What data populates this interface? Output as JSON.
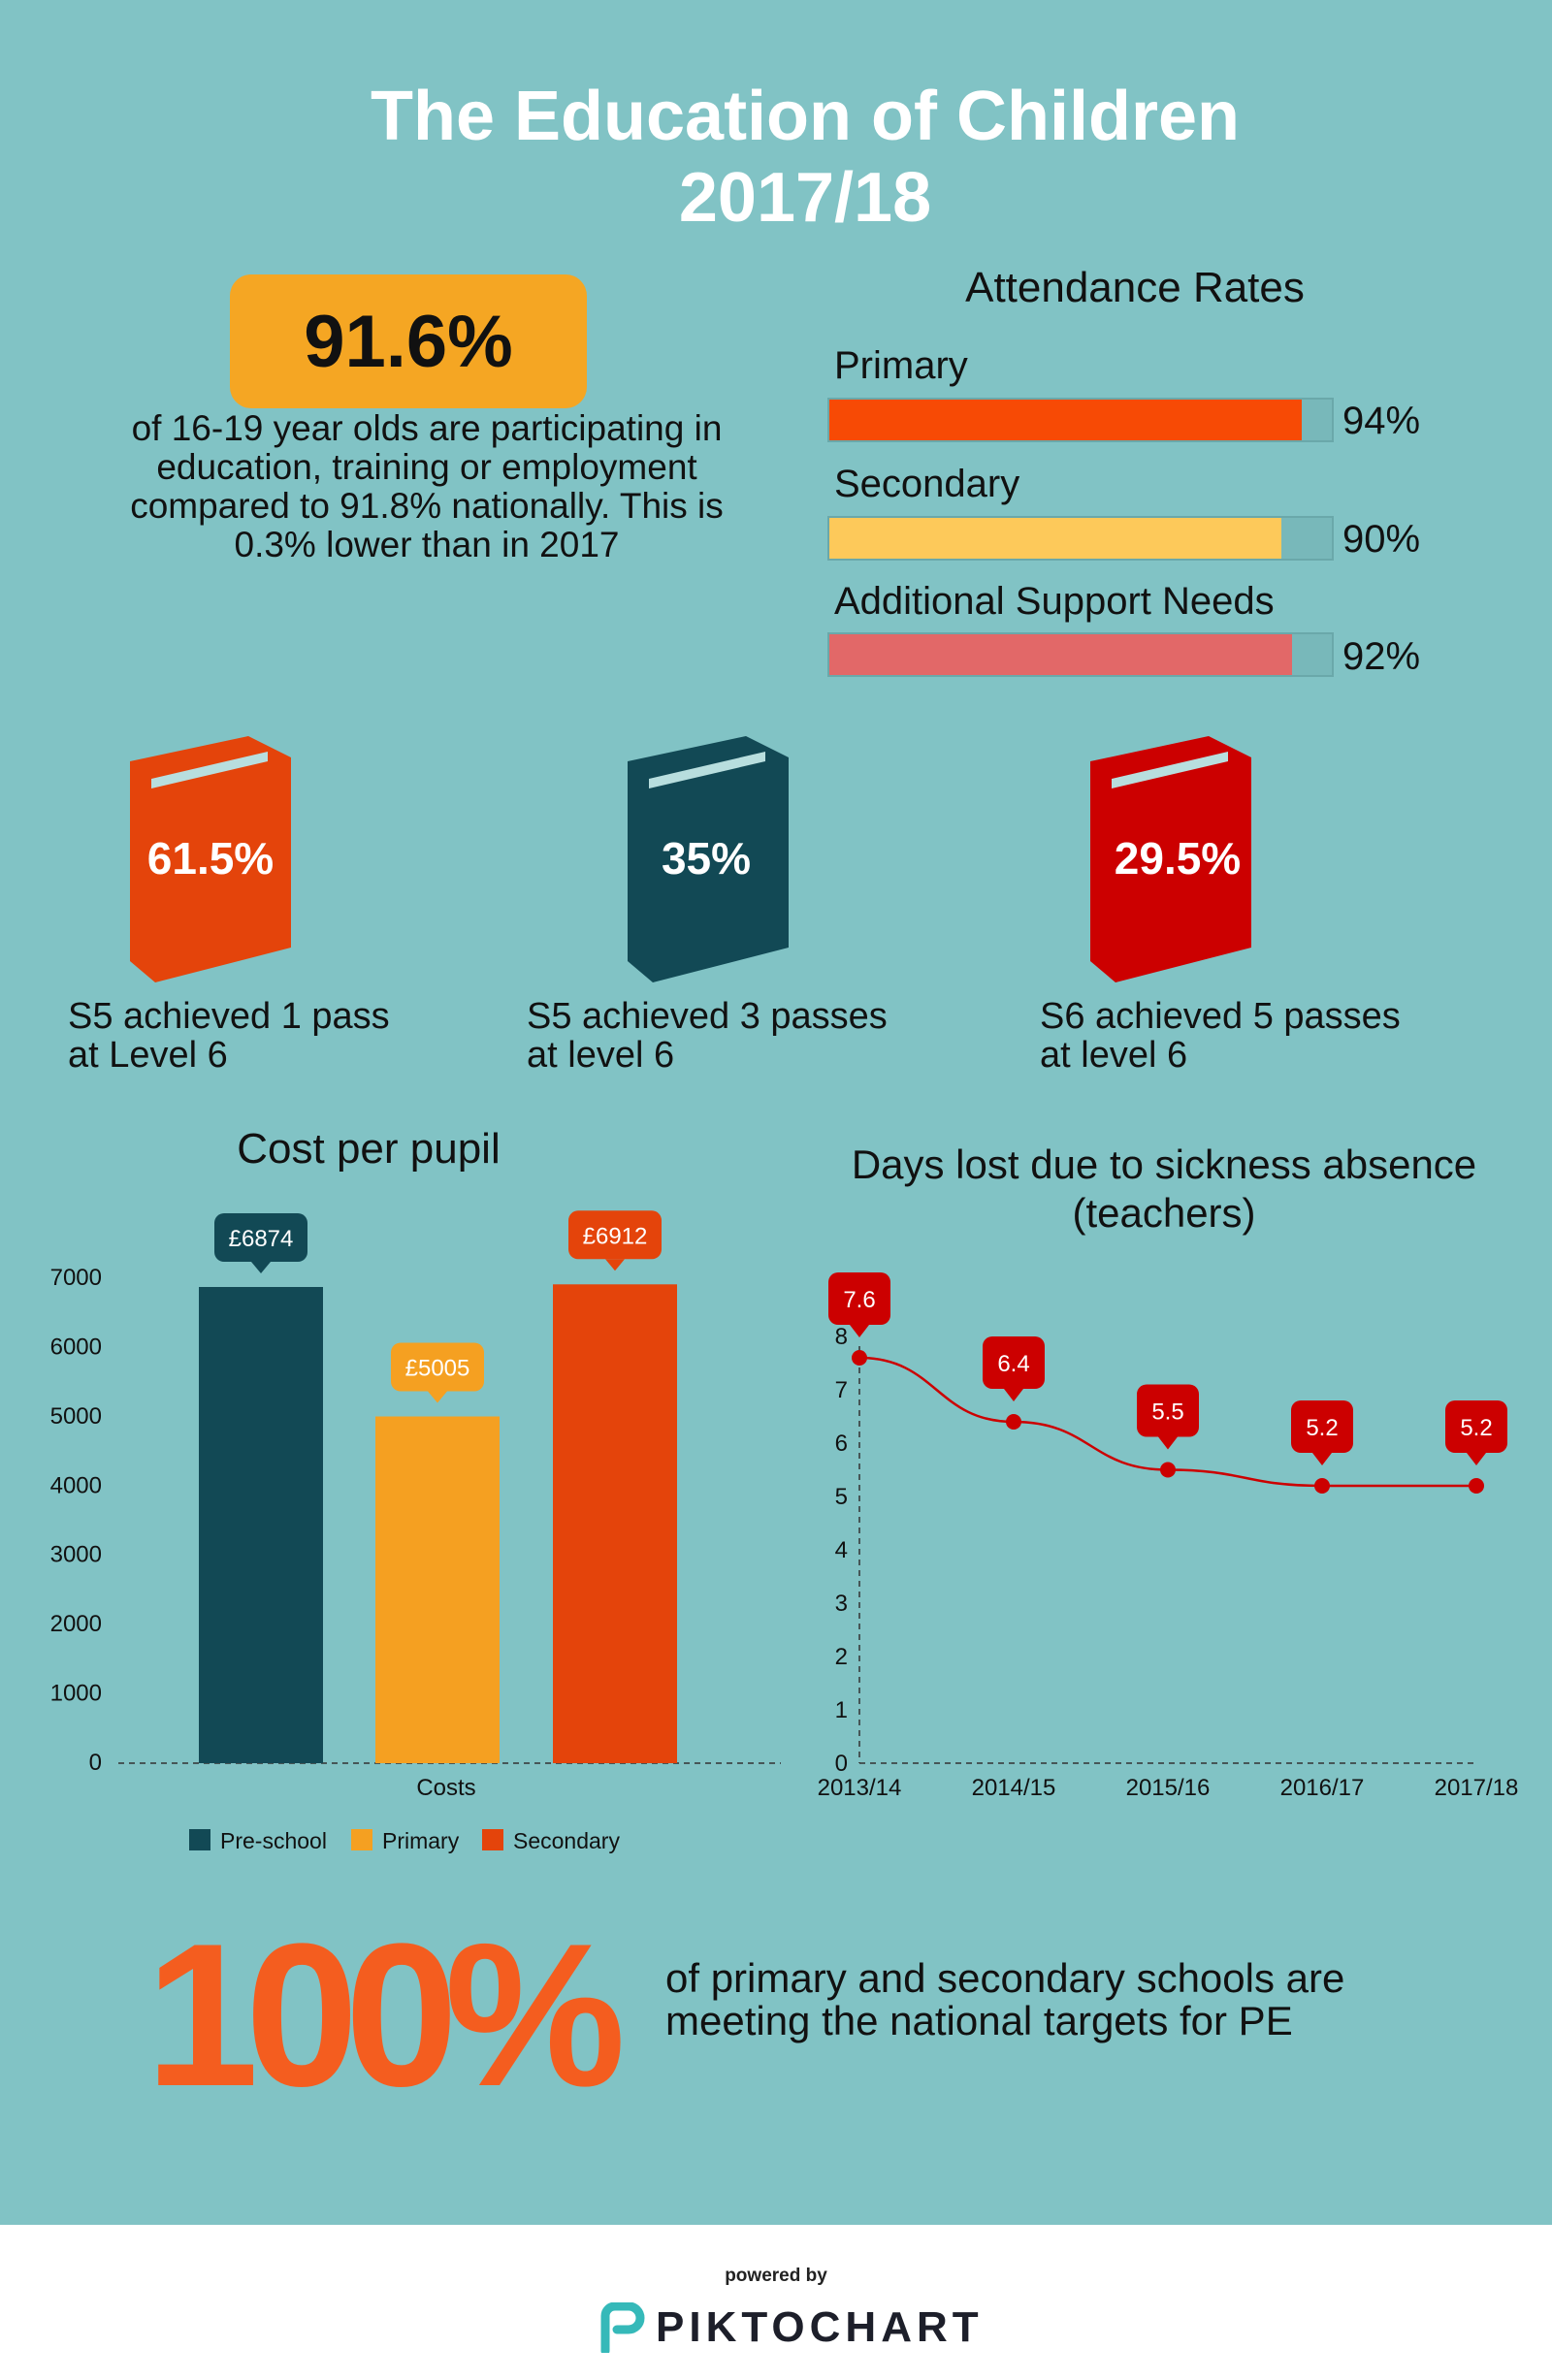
{
  "title_line1": "The Education of Children",
  "title_line2": "2017/18",
  "participation": {
    "value": "91.6%",
    "text": "of 16-19 year olds are participating in education, training or employment compared to 91.8% nationally.  This is 0.3% lower than in 2017"
  },
  "attendance": {
    "title": "Attendance Rates",
    "items": [
      {
        "label": "Primary",
        "value": 94,
        "value_label": "94%",
        "color": "#f74a05"
      },
      {
        "label": "Secondary",
        "value": 90,
        "value_label": "90%",
        "color": "#fdc95a"
      },
      {
        "label": "Additional Support Needs",
        "value": 92,
        "value_label": "92%",
        "color": "#e26868"
      }
    ]
  },
  "books": [
    {
      "value": "61.5%",
      "caption_line1": "S5 achieved 1 pass",
      "caption_line2": "at Level 6",
      "color": "#e4440b",
      "icon": "book-icon"
    },
    {
      "value": "35%",
      "caption_line1": "S5 achieved 3 passes",
      "caption_line2": "at level 6",
      "color": "#124955",
      "icon": "book-icon"
    },
    {
      "value": "29.5%",
      "caption_line1": "S6 achieved 5 passes",
      "caption_line2": "at level 6",
      "color": "#cc0000",
      "icon": "book-icon"
    }
  ],
  "chart_data": [
    {
      "type": "bar",
      "title": "Cost per pupil",
      "categories": [
        "Costs"
      ],
      "series": [
        {
          "name": "Pre-school",
          "values": [
            6874
          ],
          "label": "£6874",
          "color": "#124955"
        },
        {
          "name": "Primary",
          "values": [
            5005
          ],
          "label": "£5005",
          "color": "#f5a021"
        },
        {
          "name": "Secondary",
          "values": [
            6912
          ],
          "label": "£6912",
          "color": "#e4440b"
        }
      ],
      "xlabel": "",
      "ylabel": "",
      "ylim": [
        0,
        7000
      ],
      "yticks": [
        "0",
        "1000",
        "2000",
        "3000",
        "4000",
        "5000",
        "6000",
        "7000"
      ],
      "legend": "bottom"
    },
    {
      "type": "line",
      "title_line1": "Days lost due to sickness absence",
      "title_line2": "(teachers)",
      "x": [
        "2013/14",
        "2014/15",
        "2015/16",
        "2016/17",
        "2017/18"
      ],
      "values": [
        7.6,
        6.4,
        5.5,
        5.2,
        5.2
      ],
      "labels": [
        "7.6",
        "6.4",
        "5.5",
        "5.2",
        "5.2"
      ],
      "ylim": [
        0,
        8
      ],
      "yticks": [
        "0",
        "1",
        "2",
        "3",
        "4",
        "5",
        "6",
        "7",
        "8"
      ],
      "color": "#cc0000"
    }
  ],
  "pe": {
    "value": "100%",
    "text_line1": "of primary and secondary schools are",
    "text_line2": "meeting the national targets for PE"
  },
  "footer": {
    "powered_by": "powered by",
    "brand": "PIKTOCHART",
    "brand_icon": "piktochart-logo-icon"
  }
}
